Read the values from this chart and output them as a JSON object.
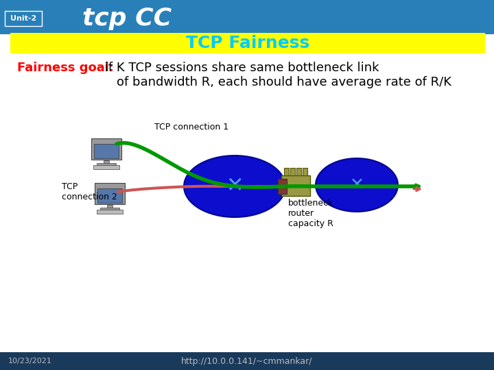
{
  "title_bar_bg": "#2980B9",
  "unit_text": "Unit-2",
  "unit_color": "#FFFFFF",
  "title_main": "tcp CC",
  "title_main_color": "#FFFFFF",
  "subtitle_bg": "#FFFF00",
  "subtitle_text": "TCP Fairness",
  "subtitle_color": "#00CCFF",
  "fairness_label": "Fairness goal:",
  "fairness_label_color": "#FF0000",
  "fairness_body": " if K TCP sessions share same bottleneck link\n    of bandwidth R, each should have average rate of R/K",
  "fairness_body_color": "#000000",
  "conn1_label": "TCP connection 1",
  "conn2_label": "TCP\nconnection 2",
  "bottleneck_label": "bottleneck\nrouter\ncapacity R",
  "footer_bg": "#1A3A5C",
  "footer_date": "10/23/2021",
  "footer_url": "http://10.0.0.141/~cmmankar/",
  "footer_color": "#BBBBBB",
  "bg_color": "#FFFFFF",
  "green_line_color": "#009900",
  "red_line_color": "#CC5555"
}
